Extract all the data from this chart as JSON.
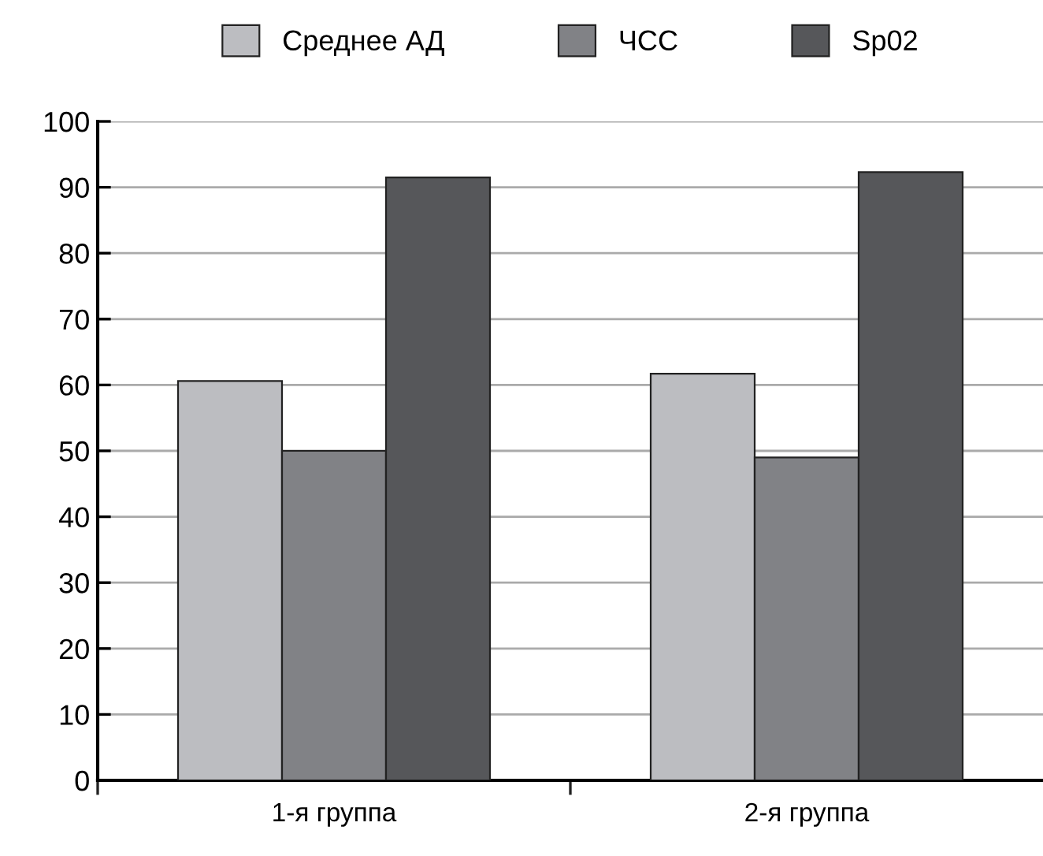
{
  "chart_data": {
    "type": "bar",
    "categories": [
      "1-я группа",
      "2-я группа"
    ],
    "series": [
      {
        "name": "Среднее АД",
        "color": "#bcbdc1",
        "values": [
          60.6,
          61.7
        ]
      },
      {
        "name": "ЧСС",
        "color": "#818286",
        "values": [
          50,
          49
        ]
      },
      {
        "name": "Sp02",
        "color": "#56575a",
        "values": [
          91.5,
          92.3
        ]
      }
    ],
    "ylim": [
      0,
      100
    ],
    "yticks": [
      0,
      10,
      20,
      30,
      40,
      50,
      60,
      70,
      80,
      90,
      100
    ],
    "grid": "y",
    "legend": "top"
  }
}
